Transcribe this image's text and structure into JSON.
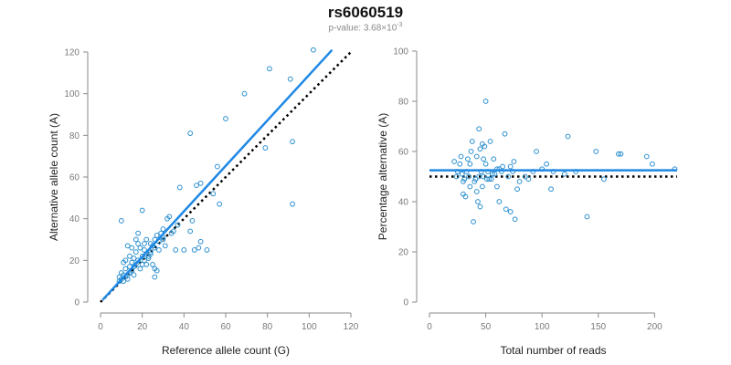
{
  "title": "rs6060519",
  "subtitle": {
    "prefix": "p-value: 3.68×10",
    "exponent": "-3"
  },
  "colors": {
    "points": "#2b8fcf",
    "fit_line": "#1e88e5",
    "reference_line": "#000000",
    "axis": "#8a8a8a"
  },
  "chart_data": [
    {
      "type": "scatter",
      "id": "left-chart",
      "xlabel": "Reference allele count (G)",
      "ylabel": "Alternative allele count (A)",
      "xlim": [
        0,
        120
      ],
      "ylim": [
        0,
        120
      ],
      "xticks": [
        0,
        20,
        40,
        60,
        80,
        100,
        120
      ],
      "yticks": [
        0,
        20,
        40,
        60,
        80,
        100,
        120
      ],
      "grid": false,
      "points": {
        "x": [
          102,
          81,
          91,
          69,
          60,
          43,
          56,
          92,
          79,
          48,
          46,
          57,
          44,
          38,
          37,
          35,
          33,
          32,
          30,
          30,
          29,
          28,
          27,
          26,
          26,
          25,
          24,
          24,
          23,
          22,
          22,
          21,
          21,
          20,
          20,
          19,
          18,
          18,
          17,
          17,
          16,
          16,
          15,
          15,
          14,
          14,
          13,
          13,
          12,
          12,
          11,
          11,
          10,
          10,
          10,
          9,
          9,
          12,
          14,
          16,
          19,
          22,
          24,
          26,
          28,
          30,
          18,
          20,
          25,
          36,
          40,
          43,
          47,
          51,
          54,
          92,
          26,
          31,
          34,
          45,
          48,
          15,
          17,
          21,
          23,
          27,
          13,
          11
        ],
        "y": [
          121,
          112,
          107,
          100,
          88,
          81,
          65,
          77,
          74,
          57,
          56,
          47,
          39,
          55,
          37,
          34,
          41,
          40,
          35,
          30,
          33,
          29,
          32,
          30,
          26,
          27,
          28,
          23,
          22,
          23,
          30,
          25,
          20,
          22,
          18,
          26,
          20,
          28,
          30,
          24,
          21,
          17,
          19,
          15,
          17,
          14,
          13,
          11,
          12,
          16,
          13,
          10,
          11,
          14,
          39,
          12,
          10,
          20,
          22,
          13,
          16,
          18,
          24,
          12,
          25,
          31,
          33,
          44,
          18,
          25,
          25,
          34,
          26,
          25,
          52,
          47,
          16,
          27,
          33,
          25,
          29,
          26,
          18,
          28,
          21,
          15,
          27,
          19
        ]
      },
      "fit_line": {
        "x": [
          1,
          111
        ],
        "y": [
          1,
          121
        ]
      },
      "reference_line": {
        "x": [
          0,
          120
        ],
        "y": [
          0,
          120
        ]
      }
    },
    {
      "type": "scatter",
      "id": "right-chart",
      "xlabel": "Total number of reads",
      "ylabel": "Percentage alternative (A)",
      "xlim": [
        0,
        220
      ],
      "ylim": [
        0,
        100
      ],
      "xticks": [
        0,
        50,
        100,
        150,
        200
      ],
      "yticks": [
        0,
        20,
        40,
        60,
        80,
        100
      ],
      "grid": false,
      "points": {
        "x": [
          50,
          44,
          42,
          47,
          123,
          95,
          38,
          48,
          57,
          62,
          75,
          170,
          193,
          140,
          104,
          67,
          30,
          33,
          35,
          36,
          40,
          42,
          45,
          46,
          50,
          52,
          55,
          58,
          60,
          62,
          65,
          68,
          70,
          72,
          74,
          76,
          78,
          80,
          22,
          24,
          25,
          27,
          28,
          29,
          30,
          31,
          32,
          34,
          37,
          39,
          41,
          43,
          44,
          45,
          47,
          48,
          49,
          51,
          53,
          56,
          85,
          88,
          92,
          100,
          110,
          120,
          130,
          148,
          155,
          168,
          198,
          218,
          108,
          64,
          72,
          36,
          54,
          60
        ],
        "y": [
          80,
          69,
          58,
          63,
          66,
          60,
          64,
          50,
          57,
          53,
          56,
          59,
          58,
          34,
          55,
          67,
          48,
          52,
          50,
          46,
          48,
          44,
          38,
          52,
          55,
          52,
          49,
          51,
          53,
          40,
          54,
          37,
          50,
          36,
          52,
          33,
          45,
          48,
          56,
          50,
          52,
          55,
          58,
          51,
          43,
          49,
          42,
          57,
          60,
          32,
          49,
          40,
          50,
          61,
          46,
          57,
          62,
          49,
          49,
          51,
          50,
          49,
          52,
          53,
          52,
          51,
          52,
          60,
          49,
          59,
          55,
          53,
          45,
          52,
          54,
          55,
          64,
          46
        ]
      },
      "fit_line": {
        "x": [
          0,
          220
        ],
        "y": [
          52.5,
          52.5
        ]
      },
      "reference_line": {
        "x": [
          0,
          220
        ],
        "y": [
          50,
          50
        ]
      }
    }
  ]
}
